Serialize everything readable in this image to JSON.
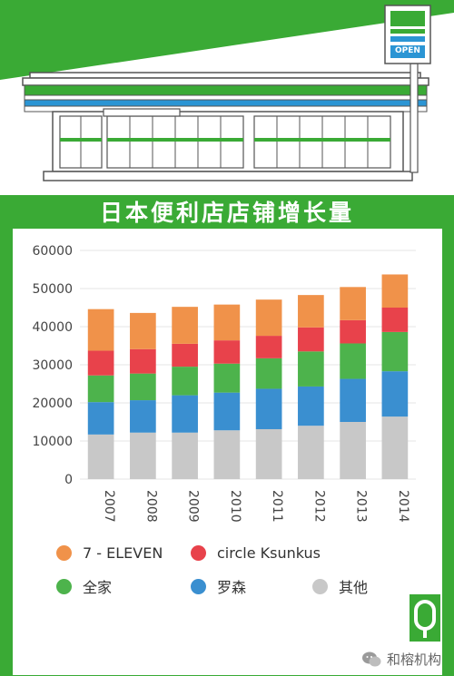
{
  "header": {
    "title": "日本便利店店铺增长量"
  },
  "store_sign": {
    "text": "OPEN"
  },
  "chart_data": {
    "type": "bar",
    "stacked": true,
    "categories": [
      "2007",
      "2008",
      "2009",
      "2010",
      "2011",
      "2012",
      "2013",
      "2014"
    ],
    "ylim": [
      0,
      60000
    ],
    "yticks": [
      "0",
      "10000",
      "20000",
      "30000",
      "40000",
      "50000",
      "60000"
    ],
    "grid": true,
    "series": [
      {
        "name": "其他",
        "color": "#c8c8c8",
        "values": [
          11700,
          12200,
          12200,
          12800,
          13100,
          14000,
          15000,
          16400
        ]
      },
      {
        "name": "罗森",
        "color": "#3a8fd0",
        "values": [
          8500,
          8500,
          9800,
          9900,
          10600,
          10300,
          11300,
          11900
        ]
      },
      {
        "name": "全家",
        "color": "#4db34c",
        "values": [
          7000,
          7000,
          7500,
          7600,
          8000,
          9200,
          9300,
          10300
        ]
      },
      {
        "name": "circle Ksunkus",
        "color": "#e8424b",
        "values": [
          6500,
          6400,
          6000,
          6100,
          5900,
          6300,
          6100,
          6400
        ]
      },
      {
        "name": "7 - ELEVEN",
        "color": "#f0924a",
        "values": [
          10900,
          9500,
          9700,
          9400,
          9500,
          8500,
          8700,
          8700
        ]
      }
    ]
  },
  "legend": [
    {
      "label": "7 - ELEVEN",
      "color": "#f0924a"
    },
    {
      "label": "circle Ksunkus",
      "color": "#e8424b"
    },
    {
      "label": "全家",
      "color": "#4db34c"
    },
    {
      "label": "罗森",
      "color": "#3a8fd0"
    },
    {
      "label": "其他",
      "color": "#c8c8c8"
    }
  ],
  "watermark": {
    "text": "和榕机构"
  }
}
